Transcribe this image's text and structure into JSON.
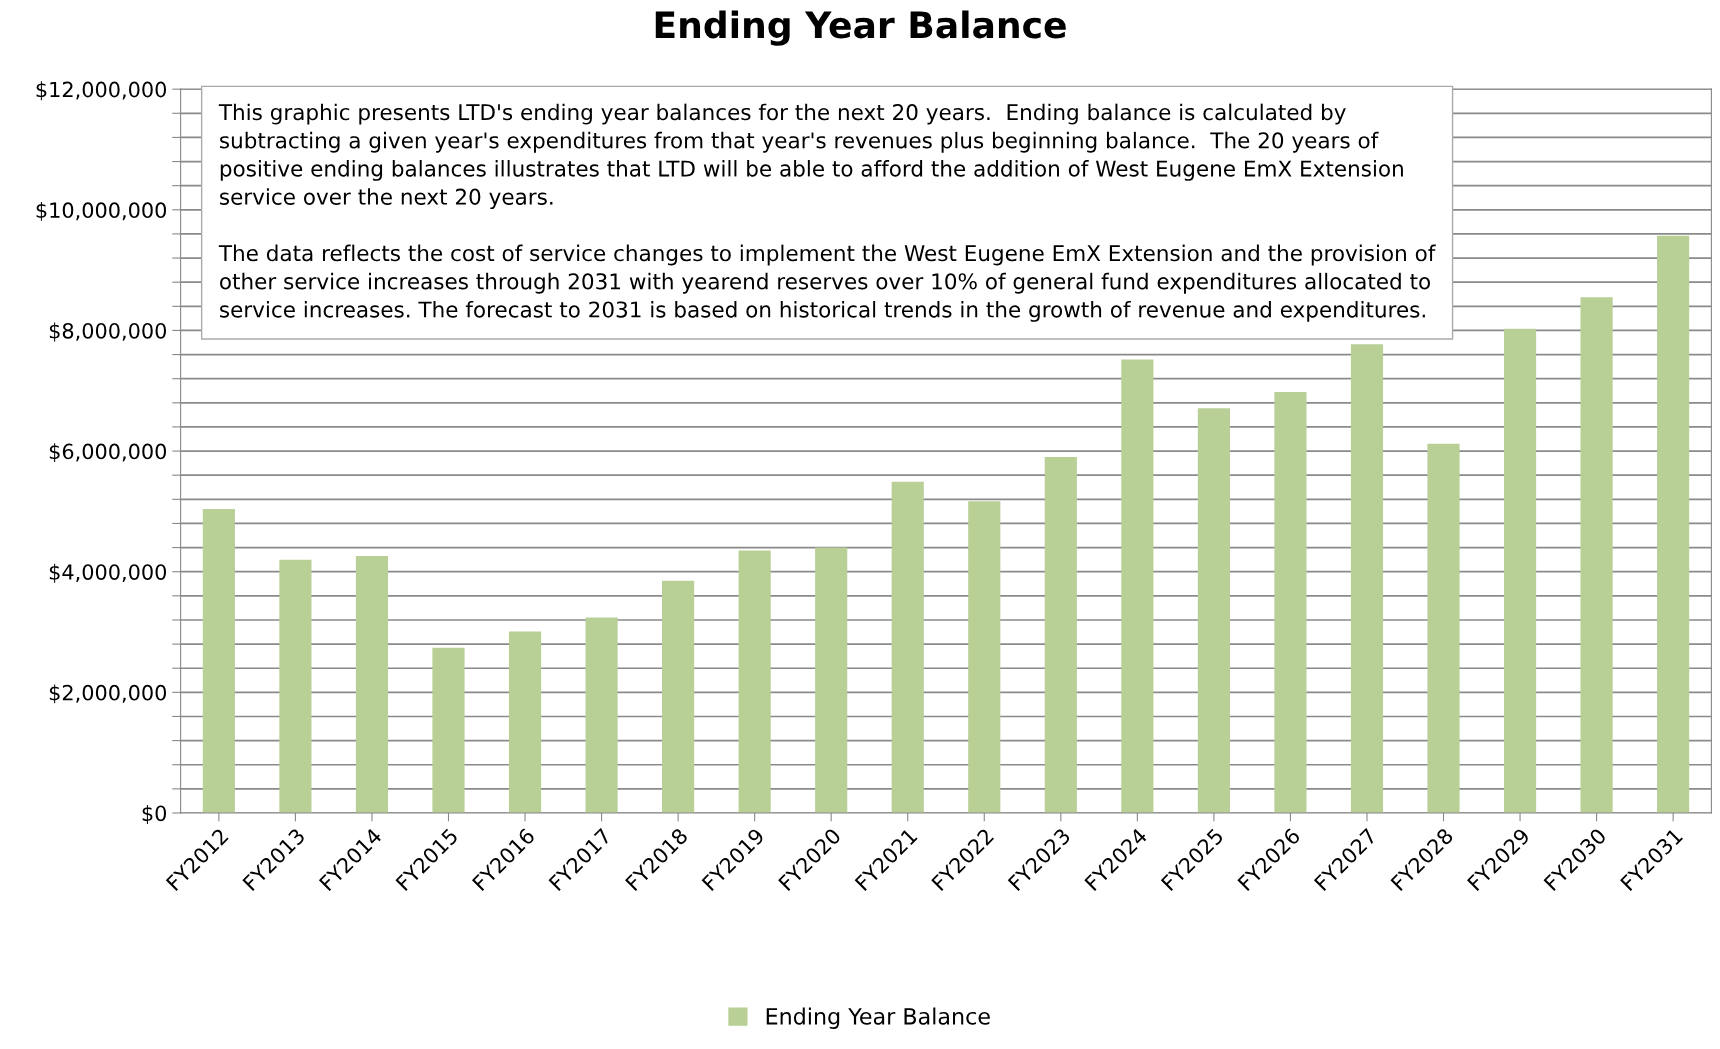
{
  "chart_data": {
    "type": "bar",
    "title": "Ending Year Balance",
    "categories": [
      "FY2012",
      "FY2013",
      "FY2014",
      "FY2015",
      "FY2016",
      "FY2017",
      "FY2018",
      "FY2019",
      "FY2020",
      "FY2021",
      "FY2022",
      "FY2023",
      "FY2024",
      "FY2025",
      "FY2026",
      "FY2027",
      "FY2028",
      "FY2029",
      "FY2030",
      "FY2031"
    ],
    "series": [
      {
        "name": "Ending Year Balance",
        "color": "#b8cf96",
        "values": [
          5040000,
          4200000,
          4260000,
          2740000,
          3010000,
          3240000,
          3850000,
          4350000,
          4400000,
          5490000,
          5170000,
          5900000,
          7520000,
          6710000,
          6980000,
          7770000,
          6120000,
          8030000,
          8550000,
          9570000
        ]
      }
    ],
    "ylim": [
      0,
      12000000
    ],
    "yticks": [
      {
        "value": 0,
        "label": "$0"
      },
      {
        "value": 400000,
        "label": null
      },
      {
        "value": 800000,
        "label": null
      },
      {
        "value": 1200000,
        "label": null
      },
      {
        "value": 1600000,
        "label": null
      },
      {
        "value": 2000000,
        "label": "$2,000,000"
      },
      {
        "value": 2400000,
        "label": null
      },
      {
        "value": 2800000,
        "label": null
      },
      {
        "value": 3200000,
        "label": null
      },
      {
        "value": 3600000,
        "label": null
      },
      {
        "value": 4000000,
        "label": "$4,000,000"
      },
      {
        "value": 4400000,
        "label": null
      },
      {
        "value": 4800000,
        "label": null
      },
      {
        "value": 5200000,
        "label": null
      },
      {
        "value": 5600000,
        "label": null
      },
      {
        "value": 6000000,
        "label": "$6,000,000"
      },
      {
        "value": 6400000,
        "label": null
      },
      {
        "value": 6800000,
        "label": null
      },
      {
        "value": 7200000,
        "label": null
      },
      {
        "value": 7600000,
        "label": null
      },
      {
        "value": 8000000,
        "label": "$8,000,000"
      },
      {
        "value": 8400000,
        "label": null
      },
      {
        "value": 8800000,
        "label": null
      },
      {
        "value": 9200000,
        "label": null
      },
      {
        "value": 9600000,
        "label": null
      },
      {
        "value": 10000000,
        "label": "$10,000,000"
      },
      {
        "value": 10400000,
        "label": null
      },
      {
        "value": 10800000,
        "label": null
      },
      {
        "value": 11200000,
        "label": null
      },
      {
        "value": 11600000,
        "label": null
      },
      {
        "value": 12000000,
        "label": "$12,000,000"
      }
    ],
    "grid": "y",
    "legend": "bottom",
    "annotations": [
      "This graphic presents LTD's ending year balances for the next 20 years.  Ending balance is calculated by subtracting a given year's expenditures from that year's revenues plus beginning balance.  The 20 years of positive ending balances illustrates that LTD will be able to afford the addition of West Eugene EmX Extension service over the next 20 years.\n\nThe data reflects the cost of service changes to implement the West Eugene EmX Extension and the provision of other service increases through 2031 with yearend reserves over 10% of general fund expenditures allocated to service increases. The forecast to 2031 is based on historical trends in the growth of revenue and expenditures."
    ]
  }
}
